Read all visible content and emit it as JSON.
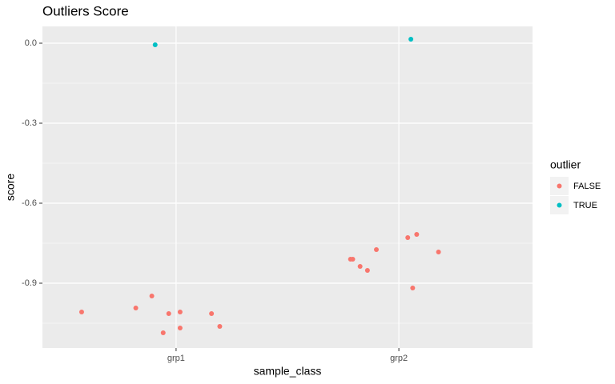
{
  "chart_data": {
    "type": "scatter",
    "title": "Outliers Score",
    "x_label": "sample_class",
    "y_label": "score",
    "legend_title": "outlier",
    "legend_position": "right",
    "xlim": [
      0.4,
      2.6
    ],
    "xticks": [
      {
        "value": 1,
        "label": "grp1"
      },
      {
        "value": 2,
        "label": "grp2"
      }
    ],
    "ylim": [
      -1.143,
      0.063
    ],
    "yticks": [
      {
        "value": 0,
        "label": "0.0"
      },
      -0.3,
      -0.6,
      -0.9
    ],
    "y_minor_ticks": [
      -0.15,
      -0.45,
      -0.75,
      -1.05
    ],
    "grid": true,
    "series": [
      {
        "name": "FALSE",
        "color": "#F8766D",
        "x": [
          0.576,
          0.819,
          0.891,
          0.967,
          1.018,
          1.159,
          0.942,
          1.018,
          1.196,
          1.783,
          1.793,
          1.826,
          1.859,
          1.899,
          2.04,
          2.08,
          2.178,
          2.062
        ],
        "values": [
          -1.008,
          -0.993,
          -0.948,
          -1.014,
          -1.008,
          -1.014,
          -1.086,
          -1.068,
          -1.062,
          -0.81,
          -0.81,
          -0.837,
          -0.852,
          -0.774,
          -0.729,
          -0.717,
          -0.783,
          -0.918
        ]
      },
      {
        "name": "TRUE",
        "color": "#00BFC4",
        "x": [
          0.906,
          2.054
        ],
        "values": [
          -0.006,
          0.015
        ]
      }
    ]
  }
}
